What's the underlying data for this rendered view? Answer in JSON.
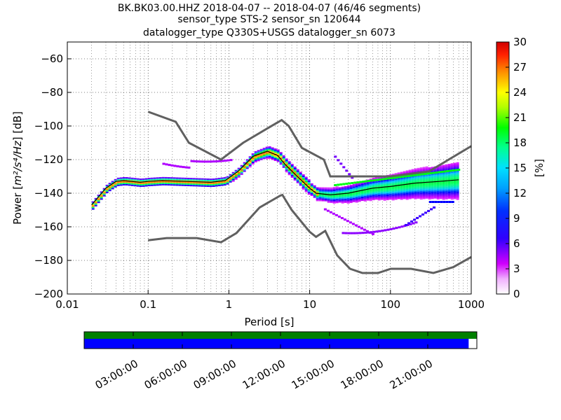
{
  "title_lines": [
    "BK.BK03.00.HHZ   2018-04-07 -- 2018-04-07  (46/46 segments)",
    "sensor_type STS-2 sensor_sn 120644",
    "datalogger_type Q330S+USGS datalogger_sn 6073"
  ],
  "chart_data": {
    "type": "heatmap",
    "title": "BK.BK03.00.HHZ   2018-04-07 -- 2018-04-07  (46/46 segments)",
    "xlabel": "Period [s]",
    "ylabel": "Power [m²/s⁴/Hz] [dB]",
    "x_scale": "log",
    "xlim": [
      0.01,
      1000
    ],
    "ylim": [
      -200,
      -50
    ],
    "x_ticks": [
      0.01,
      0.1,
      1,
      10,
      100,
      1000
    ],
    "x_tick_labels": [
      "0.01",
      "0.1",
      "1",
      "10",
      "100",
      "1000"
    ],
    "y_ticks": [
      -200,
      -180,
      -160,
      -140,
      -120,
      -100,
      -80,
      -60
    ],
    "y_tick_labels": [
      "−200",
      "−180",
      "−160",
      "−140",
      "−120",
      "−100",
      "−80",
      "−60"
    ],
    "grid": true,
    "colorbar": {
      "label": "[%]",
      "range": [
        0,
        30
      ],
      "ticks": [
        0,
        3,
        6,
        9,
        12,
        15,
        18,
        21,
        24,
        27,
        30
      ]
    },
    "noise_models": [
      {
        "role": "high",
        "points": [
          [
            0.1,
            -91.5
          ],
          [
            0.22,
            -97.5
          ],
          [
            0.32,
            -110
          ],
          [
            0.8,
            -120
          ],
          [
            1.5,
            -110
          ],
          [
            3.8,
            -98.5
          ],
          [
            4.5,
            -96.5
          ],
          [
            5.5,
            -100
          ],
          [
            8,
            -113
          ],
          [
            15,
            -120
          ],
          [
            18,
            -130
          ],
          [
            100,
            -130
          ],
          [
            300,
            -127
          ],
          [
            1000,
            -112
          ]
        ]
      },
      {
        "role": "low",
        "points": [
          [
            0.1,
            -168
          ],
          [
            0.17,
            -166.7
          ],
          [
            0.4,
            -166.7
          ],
          [
            0.8,
            -169.2
          ],
          [
            1.24,
            -163.7
          ],
          [
            2.4,
            -148.5
          ],
          [
            4.3,
            -141.5
          ],
          [
            4.6,
            -141
          ],
          [
            6,
            -150
          ],
          [
            10,
            -163
          ],
          [
            12,
            -166
          ],
          [
            15.6,
            -162.4
          ],
          [
            21.9,
            -177
          ],
          [
            31.6,
            -185
          ],
          [
            45,
            -187.5
          ],
          [
            70,
            -187.5
          ],
          [
            101,
            -185
          ],
          [
            180,
            -185
          ],
          [
            340,
            -187.5
          ],
          [
            600,
            -184
          ],
          [
            1000,
            -178
          ]
        ]
      }
    ],
    "mode_curve": {
      "points": [
        [
          0.02,
          -147
        ],
        [
          0.03,
          -137
        ],
        [
          0.04,
          -133
        ],
        [
          0.05,
          -132.5
        ],
        [
          0.08,
          -133.5
        ],
        [
          0.1,
          -133
        ],
        [
          0.15,
          -132.5
        ],
        [
          0.3,
          -133
        ],
        [
          0.6,
          -133.5
        ],
        [
          0.9,
          -132.5
        ],
        [
          1.3,
          -127
        ],
        [
          2,
          -118
        ],
        [
          3,
          -115
        ],
        [
          4,
          -117.5
        ],
        [
          5,
          -123
        ],
        [
          7,
          -130
        ],
        [
          10,
          -137
        ],
        [
          12,
          -140
        ],
        [
          18,
          -141
        ],
        [
          30,
          -140
        ],
        [
          60,
          -137
        ],
        [
          100,
          -136
        ],
        [
          200,
          -134
        ],
        [
          400,
          -133
        ],
        [
          700,
          -132
        ]
      ]
    },
    "time_axis": {
      "tick_labels": [
        "03:00:00",
        "06:00:00",
        "09:00:00",
        "12:00:00",
        "15:00:00",
        "18:00:00",
        "21:00:00"
      ],
      "tick_hours": [
        3,
        6,
        9,
        12,
        15,
        18,
        21
      ],
      "range_hours": [
        0,
        24
      ],
      "data_end_hour": 23.5
    }
  },
  "colors": {
    "noise_model": "#606060",
    "mode_curve": "#000000",
    "coverage_top": "#008000",
    "coverage_bottom": "#0000ff"
  }
}
